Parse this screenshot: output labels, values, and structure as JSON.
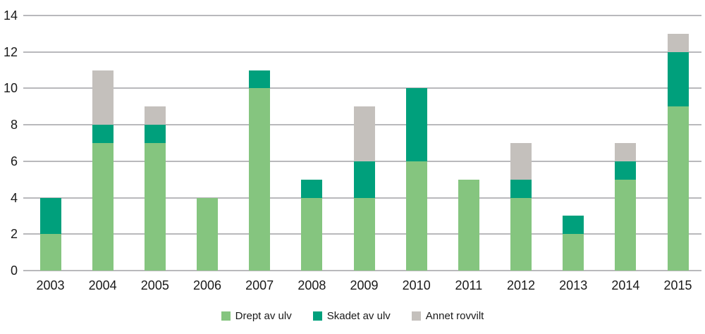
{
  "chart_data": {
    "type": "bar",
    "stacked": true,
    "title": "",
    "xlabel": "",
    "ylabel": "",
    "categories": [
      "2003",
      "2004",
      "2005",
      "2006",
      "2007",
      "2008",
      "2009",
      "2010",
      "2011",
      "2012",
      "2013",
      "2014",
      "2015"
    ],
    "series": [
      {
        "name": "Drept av ulv",
        "color": "#85c57f",
        "values": [
          2,
          7,
          7,
          4,
          10,
          4,
          4,
          6,
          5,
          4,
          2,
          5,
          9
        ]
      },
      {
        "name": "Skadet av ulv",
        "color": "#00a07c",
        "values": [
          2,
          1,
          1,
          0,
          1,
          1,
          2,
          4,
          0,
          1,
          1,
          1,
          3
        ]
      },
      {
        "name": "Annet rovvilt",
        "color": "#c4c0bc",
        "values": [
          0,
          3,
          1,
          0,
          0,
          0,
          3,
          0,
          0,
          2,
          0,
          1,
          1
        ]
      }
    ],
    "totals": [
      4,
      11,
      9,
      4,
      11,
      5,
      9,
      10,
      5,
      7,
      3,
      7,
      13
    ],
    "ylim": [
      0,
      14
    ],
    "ytick_step": 2,
    "yticks": [
      "0",
      "2",
      "4",
      "6",
      "8",
      "10",
      "12",
      "14"
    ],
    "grid": true,
    "legend_position": "bottom",
    "colors": {
      "gridline": "#b9b9bc",
      "axis_text": "#1a1a1a",
      "background": "#ffffff"
    }
  }
}
